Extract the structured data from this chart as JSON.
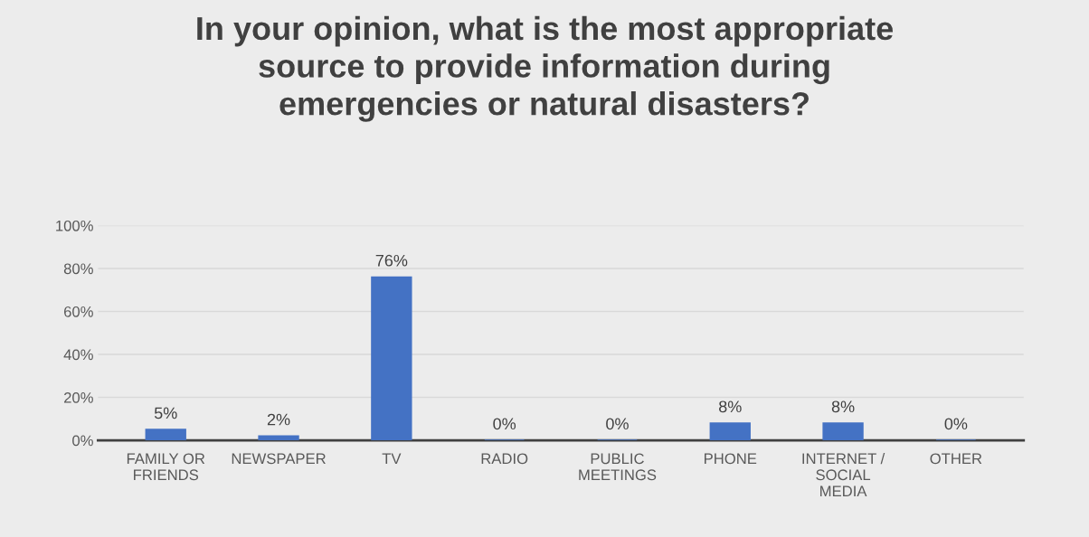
{
  "chart_data": {
    "type": "bar",
    "title": "In your opinion, what is the most appropriate\nsource to provide information during\nemergencies or natural disasters?",
    "categories": [
      "FAMILY OR\nFRIENDS",
      "NEWSPAPER",
      "TV",
      "RADIO",
      "PUBLIC\nMEETINGS",
      "PHONE",
      "INTERNET /\nSOCIAL\nMEDIA",
      "OTHER"
    ],
    "values": [
      5,
      2,
      76,
      0,
      0,
      8,
      8,
      0
    ],
    "value_labels": [
      "5%",
      "2%",
      "76%",
      "0%",
      "0%",
      "8%",
      "8%",
      "0%"
    ],
    "color": "#4472c4",
    "ylim": [
      0,
      100
    ],
    "yticks": [
      {
        "value": 0,
        "label": "0%"
      },
      {
        "value": 20,
        "label": "20%"
      },
      {
        "value": 40,
        "label": "40%"
      },
      {
        "value": 60,
        "label": "60%"
      },
      {
        "value": 80,
        "label": "80%"
      },
      {
        "value": 100,
        "label": "100%"
      }
    ],
    "grid": "y"
  }
}
